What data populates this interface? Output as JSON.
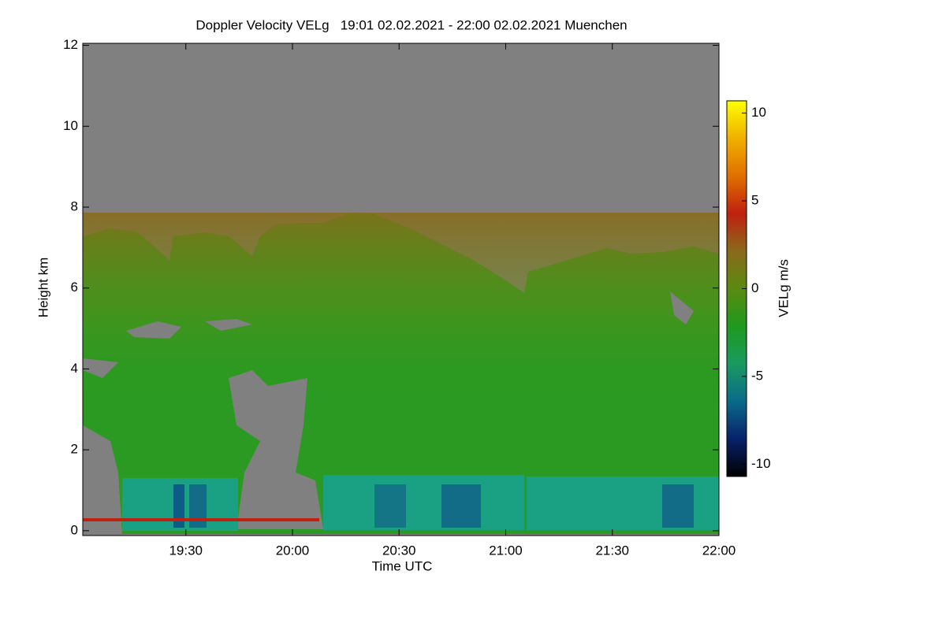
{
  "chart_data": {
    "type": "heatmap",
    "title": "Doppler Velocity VELg   19:01 02.02.2021 - 22:00 02.02.2021 Muenchen",
    "xlabel": "Time UTC",
    "ylabel": "Height km",
    "colorbar_label": "VELg m/s",
    "xlim": [
      19.0167,
      22.0
    ],
    "xticks": [
      {
        "value": 19.5,
        "label": "19:30"
      },
      {
        "value": 20.0,
        "label": "20:00"
      },
      {
        "value": 20.5,
        "label": "20:30"
      },
      {
        "value": 21.0,
        "label": "21:00"
      },
      {
        "value": 21.5,
        "label": "21:30"
      },
      {
        "value": 22.0,
        "label": "22:00"
      }
    ],
    "ylim": [
      -0.12,
      12.05
    ],
    "yticks": [
      0,
      2,
      4,
      6,
      8,
      10,
      12
    ],
    "zlim": [
      -10.7,
      10.7
    ],
    "zticks": [
      -10,
      -5,
      0,
      5,
      10
    ],
    "colormap": [
      "#000000",
      "#08226a",
      "#0a6a8a",
      "#1a9a60",
      "#1e9a1e",
      "#5a8a10",
      "#8a6a1a",
      "#c02010",
      "#e07000",
      "#f0b000",
      "#ffff00"
    ],
    "background_color": "#808080"
  }
}
